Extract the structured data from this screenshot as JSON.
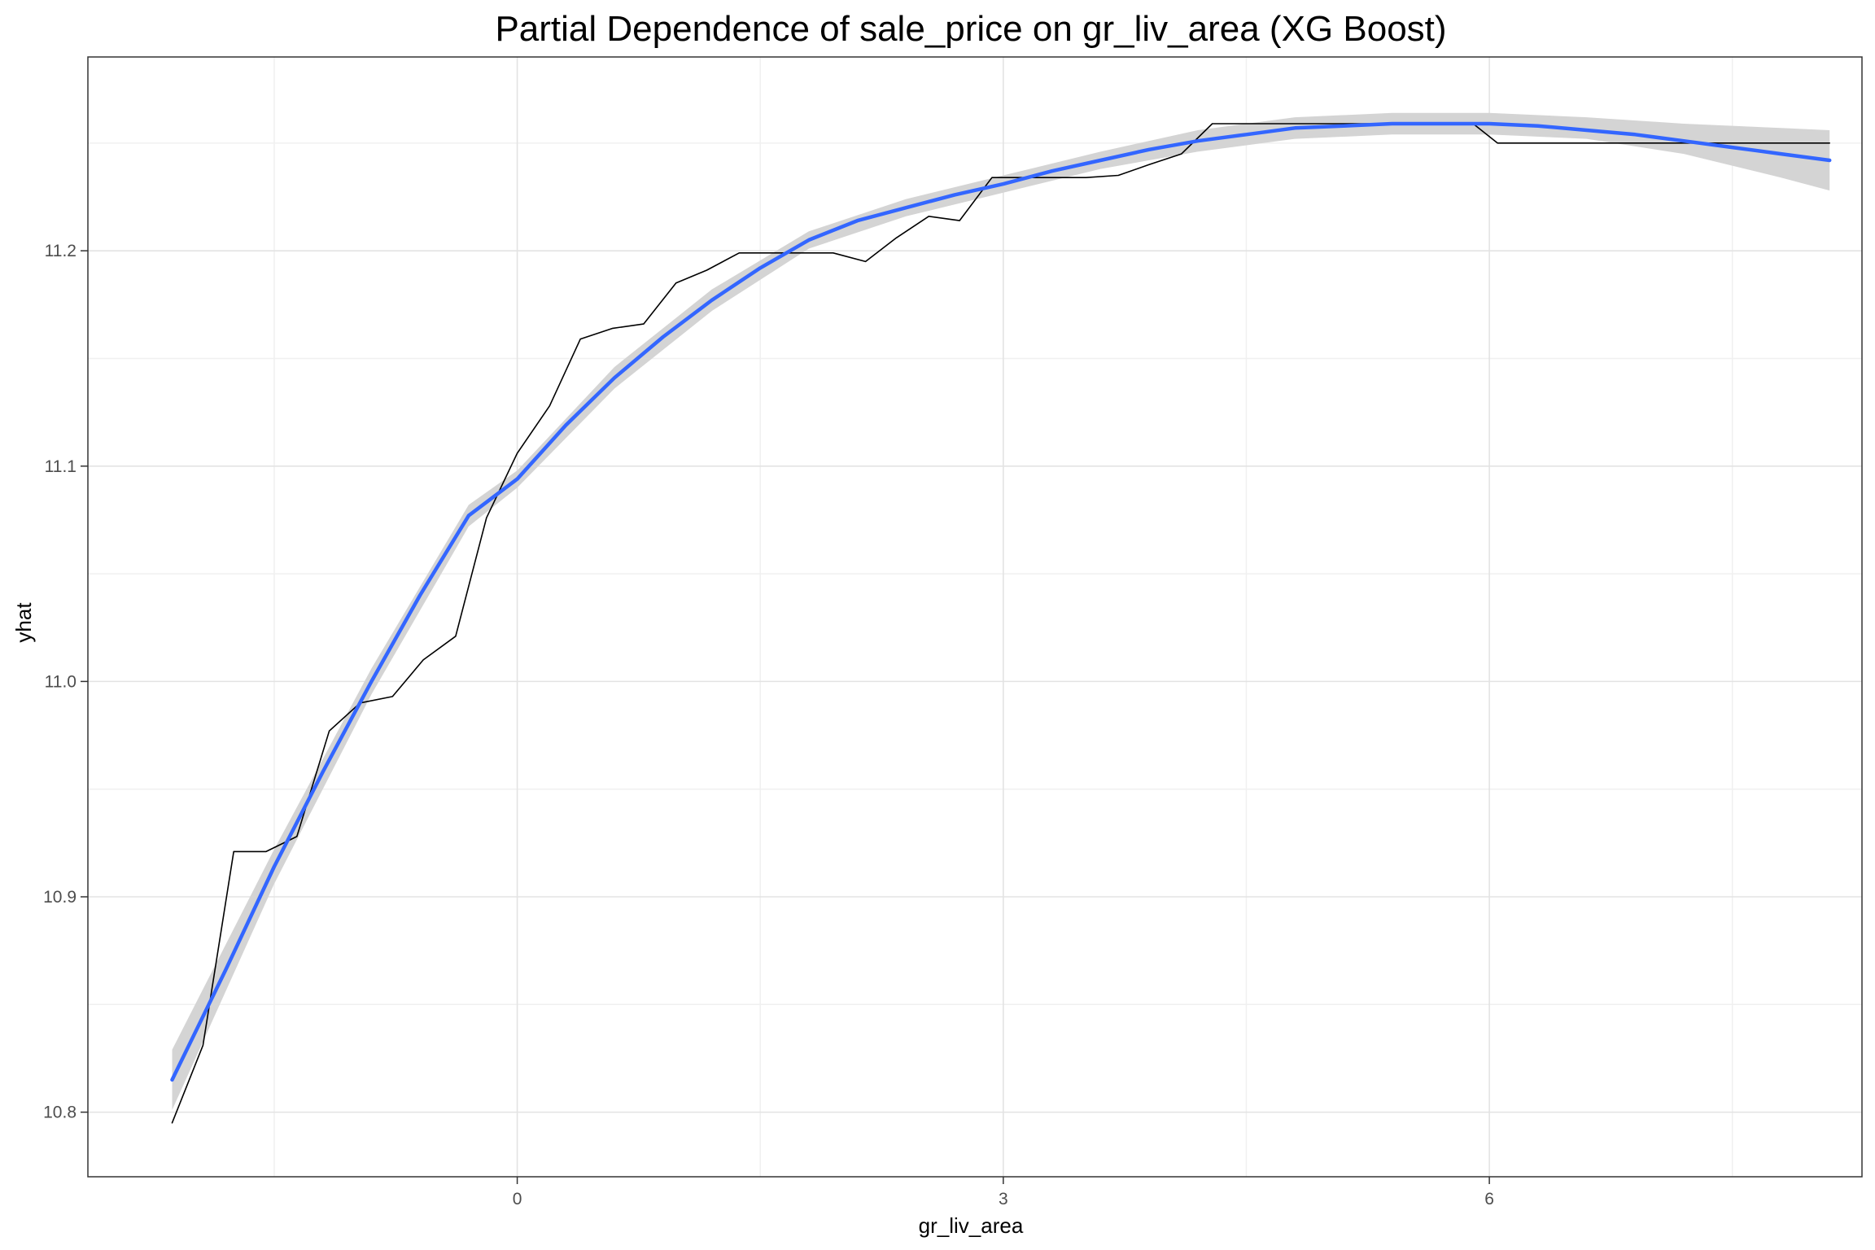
{
  "chart_data": {
    "type": "line",
    "title": "Partial Dependence of sale_price on gr_liv_area (XG Boost)",
    "xlabel": "gr_liv_area",
    "ylabel": "yhat",
    "xlim": [
      -2.65,
      8.3
    ],
    "ylim": [
      10.77,
      11.29
    ],
    "x_ticks": [
      0,
      3,
      6
    ],
    "x_tick_labels": [
      "0",
      "3",
      "6"
    ],
    "y_ticks": [
      10.8,
      10.9,
      11.0,
      11.1,
      11.2
    ],
    "y_tick_labels": [
      "10.8",
      "10.9",
      "11.0",
      "11.1",
      "11.2"
    ],
    "grid": true,
    "series": [
      {
        "color": "#000000",
        "x": [
          -2.13,
          -1.94,
          -1.75,
          -1.55,
          -1.36,
          -1.16,
          -0.97,
          -0.77,
          -0.58,
          -0.38,
          -0.19,
          0.0,
          0.2,
          0.39,
          0.59,
          0.78,
          0.98,
          1.17,
          1.37,
          1.56,
          1.76,
          1.95,
          2.15,
          2.34,
          2.54,
          2.73,
          2.93,
          3.12,
          3.32,
          3.51,
          3.71,
          3.9,
          4.1,
          4.29,
          5.9,
          6.05,
          7.2,
          8.1
        ],
        "y": [
          10.795,
          10.831,
          10.921,
          10.921,
          10.928,
          10.977,
          10.99,
          10.993,
          11.01,
          11.021,
          11.076,
          11.106,
          11.128,
          11.159,
          11.164,
          11.166,
          11.185,
          11.191,
          11.199,
          11.199,
          11.199,
          11.199,
          11.195,
          11.206,
          11.216,
          11.214,
          11.234,
          11.234,
          11.234,
          11.234,
          11.235,
          11.24,
          11.245,
          11.259,
          11.259,
          11.25,
          11.25,
          11.25
        ]
      },
      {
        "color": "#3366FF",
        "x": [
          -2.13,
          -1.8,
          -1.5,
          -1.2,
          -0.9,
          -0.6,
          -0.3,
          0.0,
          0.3,
          0.6,
          0.9,
          1.2,
          1.5,
          1.8,
          2.1,
          2.4,
          2.7,
          3.0,
          3.3,
          3.6,
          3.9,
          4.2,
          4.5,
          4.8,
          5.1,
          5.4,
          5.7,
          6.0,
          6.3,
          6.6,
          6.9,
          7.2,
          7.5,
          7.8,
          8.1
        ],
        "y": [
          10.815,
          10.866,
          10.914,
          10.958,
          11.0,
          11.04,
          11.077,
          11.094,
          11.119,
          11.141,
          11.16,
          11.177,
          11.192,
          11.205,
          11.214,
          11.22,
          11.226,
          11.231,
          11.237,
          11.242,
          11.247,
          11.251,
          11.254,
          11.257,
          11.258,
          11.259,
          11.259,
          11.259,
          11.258,
          11.256,
          11.254,
          11.251,
          11.248,
          11.245,
          11.242
        ]
      }
    ],
    "confidence_band": {
      "color": "#d4d4d4",
      "x": [
        -2.13,
        -1.5,
        -0.9,
        -0.3,
        0.0,
        0.6,
        1.2,
        1.8,
        2.4,
        3.0,
        3.6,
        4.2,
        4.8,
        5.4,
        6.0,
        6.6,
        7.2,
        7.8,
        8.1
      ],
      "lower": [
        10.801,
        10.906,
        10.994,
        11.072,
        11.09,
        11.136,
        11.172,
        11.201,
        11.216,
        11.227,
        11.238,
        11.246,
        11.252,
        11.254,
        11.254,
        11.252,
        11.245,
        11.234,
        11.228
      ],
      "upper": [
        10.829,
        10.922,
        11.006,
        11.082,
        11.098,
        11.146,
        11.182,
        11.209,
        11.224,
        11.235,
        11.246,
        11.256,
        11.262,
        11.264,
        11.264,
        11.262,
        11.259,
        11.257,
        11.256
      ]
    }
  }
}
